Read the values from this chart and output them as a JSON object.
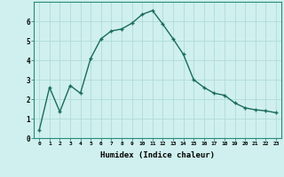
{
  "x": [
    0,
    1,
    2,
    3,
    4,
    5,
    6,
    7,
    8,
    9,
    10,
    11,
    12,
    13,
    14,
    15,
    16,
    17,
    18,
    19,
    20,
    21,
    22,
    23
  ],
  "y": [
    0.4,
    2.6,
    1.35,
    2.7,
    2.3,
    4.1,
    5.1,
    5.5,
    5.6,
    5.9,
    6.35,
    6.55,
    5.85,
    5.1,
    4.3,
    3.0,
    2.6,
    2.3,
    2.2,
    1.8,
    1.55,
    1.45,
    1.4,
    1.3
  ],
  "xlabel": "Humidex (Indice chaleur)",
  "ylim": [
    0,
    7
  ],
  "yticks": [
    0,
    1,
    2,
    3,
    4,
    5,
    6
  ],
  "xlim": [
    -0.5,
    23.5
  ],
  "line_color": "#1a6b5a",
  "marker": "+",
  "marker_size": 3,
  "bg_color": "#cff0ee",
  "grid_color": "#b0dbd8",
  "axis_color": "#2a8a7a"
}
